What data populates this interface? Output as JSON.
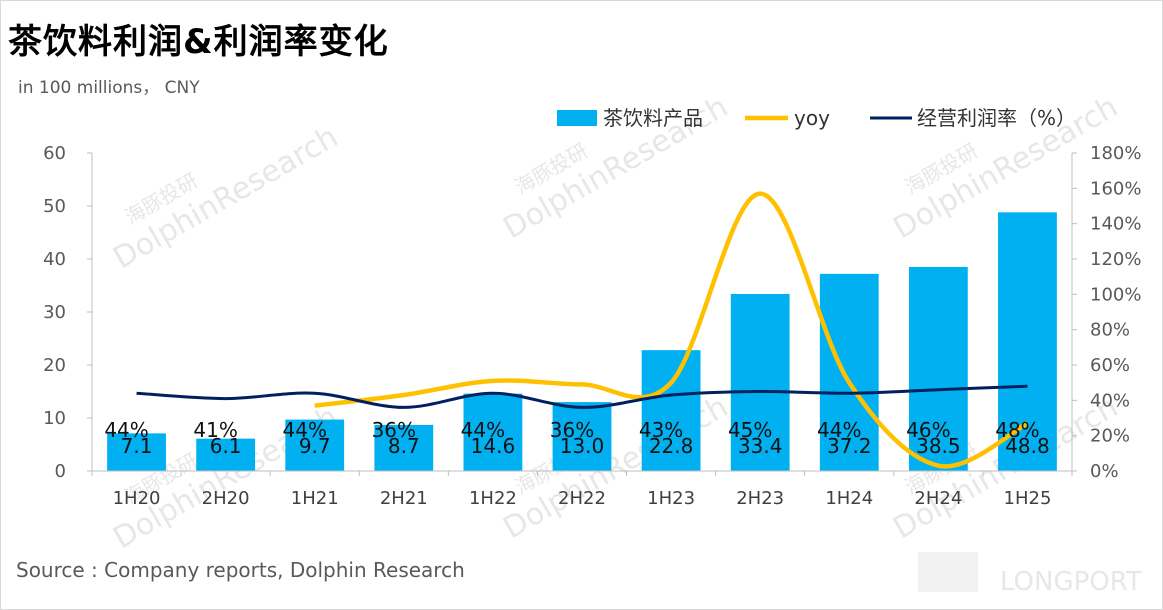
{
  "title": "茶饮料利润&利润率变化",
  "unit_note": "in 100 millions， CNY",
  "source": "Source : Company reports, Dolphin Research",
  "watermark": {
    "brand_cn": "海豚投研",
    "brand_en": "DolphinResearch",
    "corner_logo": "LONGPORT"
  },
  "colors": {
    "bar": "#00b0f0",
    "yoy": "#ffc000",
    "margin": "#002060"
  },
  "chart_data": {
    "type": "bar",
    "categories": [
      "1H20",
      "2H20",
      "1H21",
      "2H21",
      "1H22",
      "2H22",
      "1H23",
      "2H23",
      "1H24",
      "2H24",
      "1H25"
    ],
    "series": [
      {
        "name": "茶饮料产品",
        "type": "bar",
        "axis": "left",
        "values": [
          7.1,
          6.1,
          9.7,
          8.7,
          14.6,
          13.0,
          22.8,
          33.4,
          37.2,
          38.5,
          48.8
        ],
        "labels": [
          "7.1",
          "6.1",
          "9.7",
          "8.7",
          "14.6",
          "13.0",
          "22.8",
          "33.4",
          "37.2",
          "38.5",
          "48.8"
        ]
      },
      {
        "name": "yoy",
        "type": "line",
        "axis": "right",
        "smooth": true,
        "values": [
          null,
          null,
          37,
          43,
          51,
          49,
          50,
          157,
          50,
          3,
          27
        ]
      },
      {
        "name": "经营利润率（%）",
        "type": "line",
        "axis": "right",
        "smooth": true,
        "values": [
          44,
          41,
          44,
          36,
          44,
          36,
          43,
          45,
          44,
          46,
          48
        ],
        "labels": [
          "44%",
          "41%",
          "44%",
          "36%",
          "44%",
          "36%",
          "43%",
          "45%",
          "44%",
          "46%",
          "48%"
        ]
      }
    ],
    "y_left": {
      "min": 0,
      "max": 60,
      "ticks": [
        "0",
        "10",
        "20",
        "30",
        "40",
        "50",
        "60"
      ]
    },
    "y_right": {
      "min": 0,
      "max": 180,
      "ticks": [
        "0%",
        "20%",
        "40%",
        "60%",
        "80%",
        "100%",
        "120%",
        "140%",
        "160%",
        "180%"
      ]
    },
    "grid": false,
    "legend_position": "top-right"
  }
}
